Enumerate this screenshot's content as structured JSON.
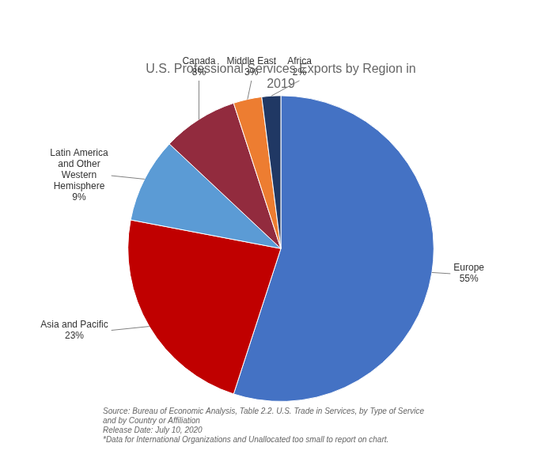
{
  "chart_data": {
    "type": "pie",
    "title": "U.S. Professional Services Exports by Region in\n2019",
    "categories": [
      "Europe",
      "Asia and Pacific",
      "Latin America\nand Other\nWestern\nHemisphere",
      "Canada",
      "Middle East",
      "Africa"
    ],
    "values": [
      55,
      23,
      9,
      8,
      3,
      2
    ],
    "value_labels": [
      "55%",
      "23%",
      "9%",
      "8%",
      "3%",
      "2%"
    ],
    "data_labels": true,
    "colors": [
      "#4472C4",
      "#C00000",
      "#5B9BD5",
      "#922B3E",
      "#ED7D31",
      "#203864"
    ],
    "legend": false,
    "annotations": [
      "Source: Bureau of Economic Analysis, Table 2.2. U.S. Trade in Services, by Type of Service\nand by Country or Affiliation\nRelease Date: July 10, 2020\n*Data for International Organizations and Unallocated too small to report on chart."
    ]
  }
}
